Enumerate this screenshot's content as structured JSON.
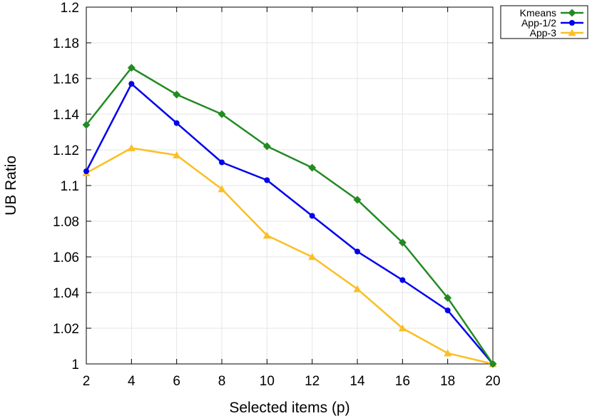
{
  "chart_data": {
    "type": "line",
    "title": "",
    "xlabel": "Selected items (p)",
    "ylabel": "UB Ratio",
    "x": [
      2,
      4,
      6,
      8,
      10,
      12,
      14,
      16,
      18,
      20
    ],
    "xlim": [
      2,
      20
    ],
    "ylim": [
      1,
      1.2
    ],
    "xticks": [
      "2",
      "4",
      "6",
      "8",
      "10",
      "12",
      "14",
      "16",
      "18",
      "20"
    ],
    "yticks": [
      "1",
      "1.02",
      "1.04",
      "1.06",
      "1.08",
      "1.1",
      "1.12",
      "1.14",
      "1.16",
      "1.18",
      "1.2"
    ],
    "grid": true,
    "legend_position": "outside-top-right",
    "series": [
      {
        "name": "Kmeans",
        "color": "#228b22",
        "marker": "diamond",
        "values": [
          1.134,
          1.166,
          1.151,
          1.14,
          1.122,
          1.11,
          1.092,
          1.068,
          1.037,
          1.0
        ]
      },
      {
        "name": "App-1/2",
        "color": "#0000ee",
        "marker": "circle",
        "values": [
          1.108,
          1.157,
          1.135,
          1.113,
          1.103,
          1.083,
          1.063,
          1.047,
          1.03,
          1.0
        ]
      },
      {
        "name": "App-3",
        "color": "#fbbf24",
        "marker": "triangle",
        "values": [
          1.107,
          1.121,
          1.117,
          1.098,
          1.072,
          1.06,
          1.042,
          1.02,
          1.006,
          1.0
        ]
      }
    ]
  }
}
